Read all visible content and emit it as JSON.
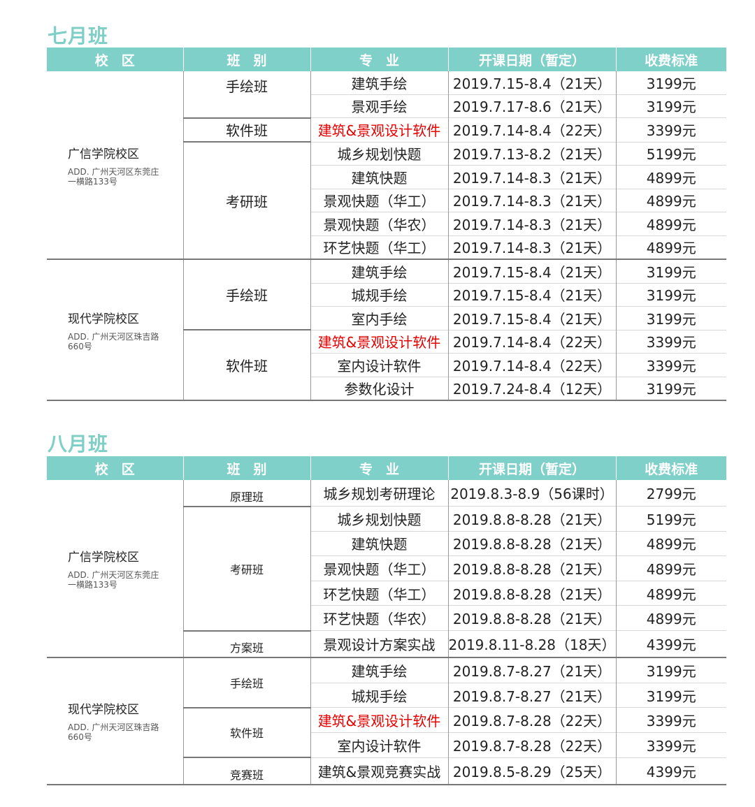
{
  "colors": {
    "accent": "#7fd0c8",
    "highlight": "#e60000"
  },
  "sections": [
    {
      "title": "七月班",
      "headers": [
        "校　区",
        "班　别",
        "专　业",
        "开课日期（暂定）",
        "收费标准"
      ],
      "groups": [
        {
          "campus": "广信学院校区",
          "address": "ADD. 广州天河区东莞庄一横路133号",
          "classes": [
            {
              "name": "手绘班",
              "rows": [
                {
                  "major": "建筑手绘",
                  "date": "2019.7.15-8.4（21天）",
                  "fee": "3199元"
                },
                {
                  "major": "景观手绘",
                  "date": "2019.7.17-8.6（21天）",
                  "fee": "3199元"
                }
              ]
            },
            {
              "name": "软件班",
              "rows": [
                {
                  "major": "建筑&景观设计软件",
                  "date": "2019.7.14-8.4（22天）",
                  "fee": "3399元",
                  "highlight": true
                }
              ]
            },
            {
              "name": "考研班",
              "rows": [
                {
                  "major": "城乡规划快题",
                  "date": "2019.7.13-8.2（21天）",
                  "fee": "5199元"
                },
                {
                  "major": "建筑快题",
                  "date": "2019.7.14-8.3（21天）",
                  "fee": "4899元"
                },
                {
                  "major": "景观快题（华工）",
                  "date": "2019.7.14-8.3（21天）",
                  "fee": "4899元"
                },
                {
                  "major": "景观快题（华农）",
                  "date": "2019.7.14-8.3（21天）",
                  "fee": "4899元"
                },
                {
                  "major": "环艺快题（华工）",
                  "date": "2019.7.14-8.3（21天）",
                  "fee": "4899元"
                }
              ]
            }
          ]
        },
        {
          "campus": "现代学院校区",
          "address": "ADD. 广州天河区珠吉路660号",
          "classes": [
            {
              "name": "手绘班",
              "rows": [
                {
                  "major": "建筑手绘",
                  "date": "2019.7.15-8.4（21天）",
                  "fee": "3199元"
                },
                {
                  "major": "城规手绘",
                  "date": "2019.7.15-8.4（21天）",
                  "fee": "3199元"
                },
                {
                  "major": "室内手绘",
                  "date": "2019.7.15-8.4（21天）",
                  "fee": "3199元"
                }
              ]
            },
            {
              "name": "软件班",
              "rows": [
                {
                  "major": "建筑&景观设计软件",
                  "date": "2019.7.14-8.4（22天）",
                  "fee": "3399元",
                  "highlight": true
                },
                {
                  "major": "室内设计软件",
                  "date": "2019.7.14-8.4（22天）",
                  "fee": "3399元"
                },
                {
                  "major": "参数化设计",
                  "date": "2019.7.24-8.4（12天）",
                  "fee": "3199元"
                }
              ]
            }
          ]
        }
      ]
    },
    {
      "title": "八月班",
      "headers": [
        "校　区",
        "班　别",
        "专　业",
        "开课日期（暂定）",
        "收费标准"
      ],
      "groups": [
        {
          "campus": "广信学院校区",
          "address": "ADD. 广州天河区东莞庄一横路133号",
          "classes": [
            {
              "name": "原理班",
              "rows": [
                {
                  "major": "城乡规划考研理论",
                  "date": "2019.8.3-8.9（56课时）",
                  "fee": "2799元"
                }
              ]
            },
            {
              "name": "考研班",
              "rows": [
                {
                  "major": "城乡规划快题",
                  "date": "2019.8.8-8.28（21天）",
                  "fee": "5199元"
                },
                {
                  "major": "建筑快题",
                  "date": "2019.8.8-8.28（21天）",
                  "fee": "4899元"
                },
                {
                  "major": "景观快题（华工）",
                  "date": "2019.8.8-8.28（21天）",
                  "fee": "4899元"
                },
                {
                  "major": "环艺快题（华工）",
                  "date": "2019.8.8-8.28（21天）",
                  "fee": "4899元"
                },
                {
                  "major": "环艺快题（华农）",
                  "date": "2019.8.8-8.28（21天）",
                  "fee": "4899元"
                }
              ]
            },
            {
              "name": "方案班",
              "rows": [
                {
                  "major": "景观设计方案实战",
                  "date": "2019.8.11-8.28（18天）",
                  "fee": "4399元"
                }
              ]
            }
          ]
        },
        {
          "campus": "现代学院校区",
          "address": "ADD. 广州天河区珠吉路660号",
          "classes": [
            {
              "name": "手绘班",
              "rows": [
                {
                  "major": "建筑手绘",
                  "date": "2019.8.7-8.27（21天）",
                  "fee": "3199元"
                },
                {
                  "major": "城规手绘",
                  "date": "2019.8.7-8.27（21天）",
                  "fee": "3199元"
                }
              ]
            },
            {
              "name": "软件班",
              "rows": [
                {
                  "major": "建筑&景观设计软件",
                  "date": "2019.8.7-8.28（22天）",
                  "fee": "3399元",
                  "highlight": true
                },
                {
                  "major": "室内设计软件",
                  "date": "2019.8.7-8.28（22天）",
                  "fee": "3399元"
                }
              ]
            },
            {
              "name": "竞赛班",
              "rows": [
                {
                  "major": "建筑&景观竞赛实战",
                  "date": "2019.8.5-8.29（25天）",
                  "fee": "4399元"
                }
              ]
            }
          ]
        }
      ]
    }
  ]
}
